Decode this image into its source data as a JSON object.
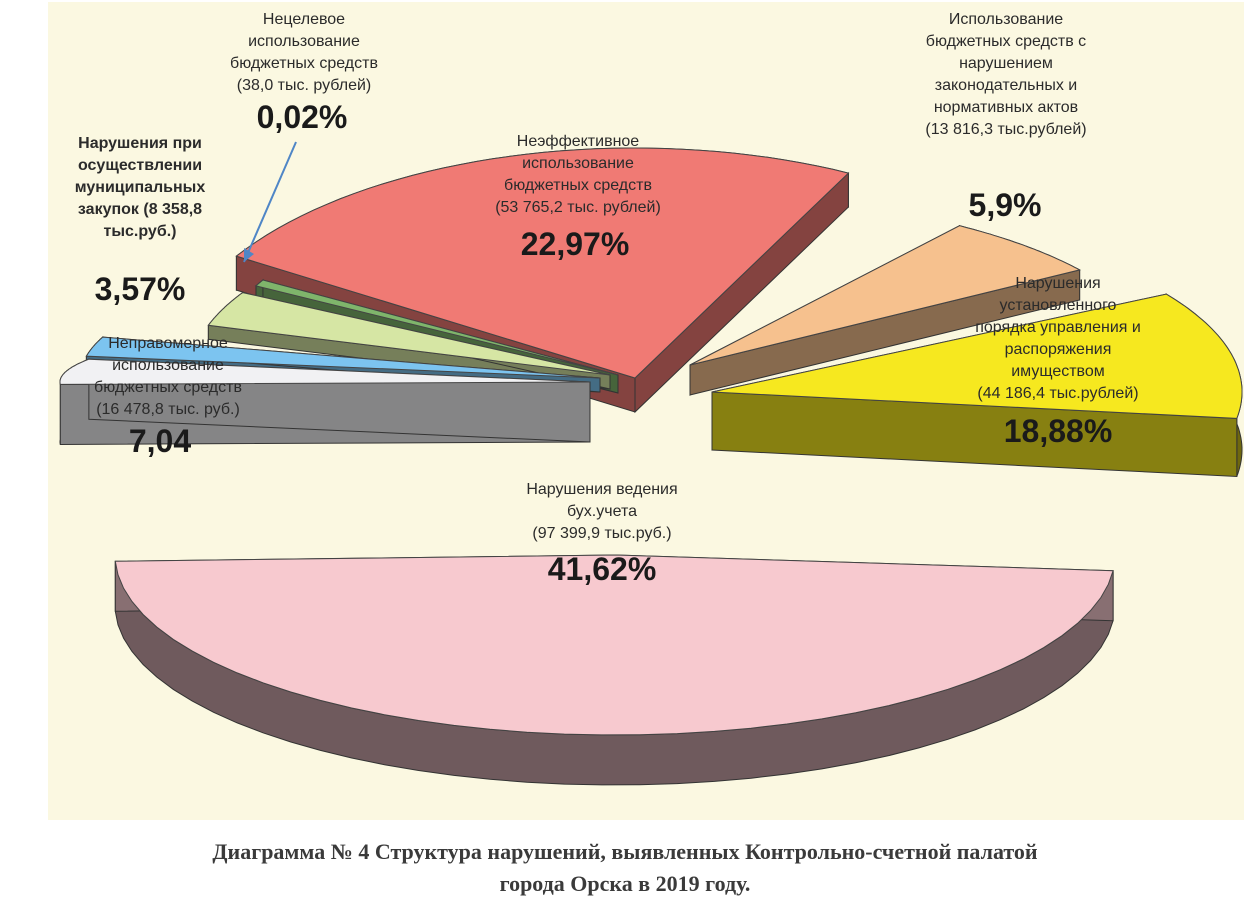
{
  "chart_data": {
    "type": "pie",
    "title": "",
    "slices": [
      {
        "key": "buh",
        "name_lines": [
          "Нарушения ведения",
          "бух.учета",
          "(97 399,9 тыс.руб.)"
        ],
        "amount_text": "(97 399,9 тыс.руб.)",
        "value": 41.62,
        "percent_label": "41,62%",
        "color": "#f7c9cf"
      },
      {
        "key": "nepr",
        "name_lines": [
          "Неправомерное",
          "использование",
          "бюджетных средств",
          "(16 478,8 тыс. руб.)"
        ],
        "amount_text": "(16 478,8 тыс. руб.)",
        "value": 7.04,
        "percent_label": "7,04",
        "color": "#f1f1f3"
      },
      {
        "key": "zakup",
        "name_lines": [],
        "amount_text": "",
        "value": 3.57,
        "percent_label": "3,57%",
        "color": "#7cc4f0"
      },
      {
        "key": "zakup2",
        "name_lines": [
          "Нарушения при",
          "осуществлении",
          "муниципальных",
          "закупок  (8 358,8",
          "тыс.руб.)"
        ],
        "amount_text": "(8 358,8 тыс.руб.)",
        "value": 0.0,
        "percent_label": "",
        "color": "#d6e6a4"
      },
      {
        "key": "necel",
        "name_lines": [
          "Нецелевое",
          "использование",
          "бюджетных средств",
          "(38,0 тыс. рублей)"
        ],
        "amount_text": "(38,0 тыс. рублей)",
        "value": 0.02,
        "percent_label": "0,02%",
        "color": "#7fb56b"
      },
      {
        "key": "neef",
        "name_lines": [
          "Неэффективное",
          "использование",
          "бюджетных средств",
          "(53 765,2  тыс. рублей)"
        ],
        "amount_text": "(53 765,2  тыс. рублей)",
        "value": 22.97,
        "percent_label": "22,97%",
        "color": "#f07a74"
      },
      {
        "key": "zakon",
        "name_lines": [
          "Использование",
          "бюджетных средств с",
          "нарушением",
          "законодательных и",
          "нормативных актов",
          "(13 816,3 тыс.рублей)"
        ],
        "amount_text": "(13 816,3 тыс.рублей)",
        "value": 5.9,
        "percent_label": "5,9%",
        "color": "#f6c18e"
      },
      {
        "key": "imush",
        "name_lines": [
          "Нарушения",
          "установленного",
          "порядка управления и",
          "распоряжения",
          "имуществом",
          "(44 186,4 тыс.рублей)"
        ],
        "amount_text": "(44 186,4 тыс.рублей)",
        "value": 18.88,
        "percent_label": "18,88%",
        "color": "#f6e81f"
      }
    ]
  },
  "caption": {
    "line1": "Диаграмма № 4 Структура нарушений, выявленных Контрольно-счетной палатой",
    "line2": "города Орска в 2019 году."
  }
}
